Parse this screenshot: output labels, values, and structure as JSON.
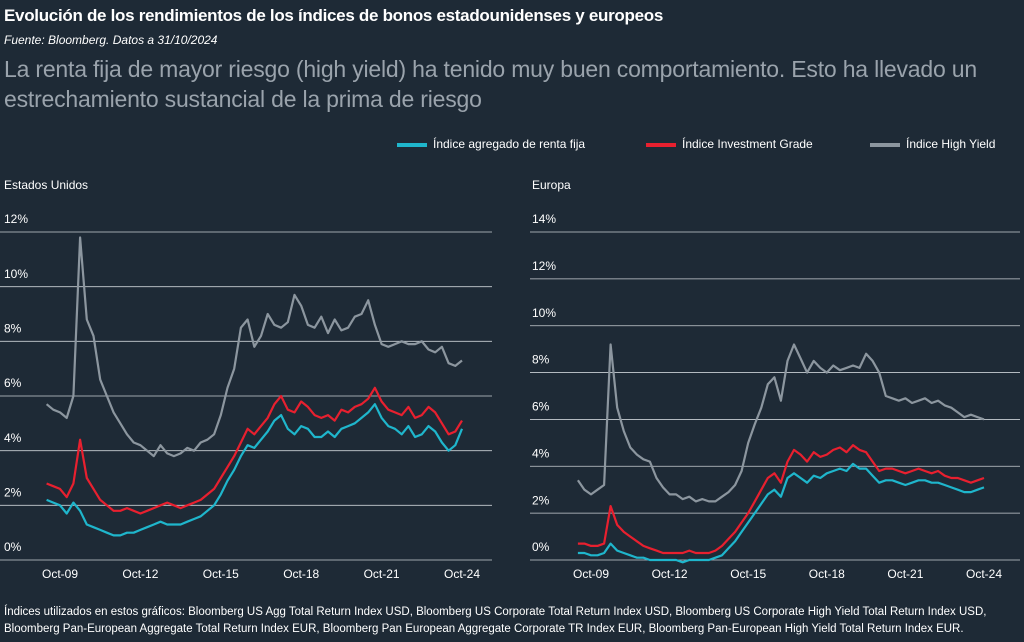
{
  "title": "Evolución de los rendimientos de los índices de bonos estadounidenses y europeos",
  "source": "Fuente: Bloomberg. Datos a 31/10/2024",
  "subtitle": "La renta fija de mayor riesgo (high yield) ha tenido muy buen comportamiento. Esto ha llevado un estrechamiento sustancial de la prima de riesgo",
  "note": "Índices utilizados en estos gráficos: Bloomberg US Agg Total Return Index USD, Bloomberg US Corporate Total Return Index USD, Bloomberg US Corporate High Yield Total Return Index USD, Bloomberg Pan-European Aggregate Total Return Index EUR, Bloomberg Pan European Aggregate Corporate TR Index EUR, Bloomberg Pan-European High Yield Total Return Index EUR.",
  "chart_data": [
    {
      "type": "line",
      "title": "Estados Unidos",
      "categories": [
        null,
        null,
        "Oct-09",
        null,
        null,
        null,
        null,
        null,
        null,
        null,
        null,
        null,
        null,
        null,
        "Oct-12",
        null,
        null,
        null,
        null,
        null,
        null,
        null,
        null,
        null,
        null,
        null,
        "Oct-15",
        null,
        null,
        null,
        null,
        null,
        null,
        null,
        null,
        null,
        null,
        null,
        "Oct-18",
        null,
        null,
        null,
        null,
        null,
        null,
        null,
        null,
        null,
        null,
        null,
        "Oct-21",
        null,
        null,
        null,
        null,
        null,
        null,
        null,
        null,
        null,
        null,
        null,
        "Oct-24"
      ],
      "ylim": [
        0,
        12
      ],
      "yticks": [
        {
          "value": 0,
          "label": "0%"
        },
        {
          "value": 2,
          "label": "2%"
        },
        {
          "value": 4,
          "label": "4%"
        },
        {
          "value": 6,
          "label": "6%"
        },
        {
          "value": 8,
          "label": "8%"
        },
        {
          "value": 10,
          "label": "10%"
        },
        {
          "value": 12,
          "label": "12%"
        }
      ],
      "grid": true,
      "series": [
        {
          "name": "Índice agregado de renta fija",
          "color": "#1fb6cc",
          "values": [
            2.2,
            2.1,
            2.0,
            1.7,
            2.1,
            1.8,
            1.3,
            1.2,
            1.1,
            1.0,
            0.9,
            0.9,
            1.0,
            1.0,
            1.1,
            1.2,
            1.3,
            1.4,
            1.3,
            1.3,
            1.3,
            1.4,
            1.5,
            1.6,
            1.8,
            2.0,
            2.4,
            2.9,
            3.3,
            3.8,
            4.2,
            4.1,
            4.4,
            4.7,
            5.1,
            5.3,
            4.8,
            4.6,
            4.9,
            4.8,
            4.5,
            4.5,
            4.7,
            4.5,
            4.8,
            4.9,
            5.0,
            5.2,
            5.4,
            5.7,
            5.2,
            4.9,
            4.8,
            4.6,
            4.9,
            4.5,
            4.6,
            4.9,
            4.7,
            4.3,
            4.0,
            4.2,
            4.8
          ]
        },
        {
          "name": "Índice Investment Grade",
          "color": "#e8202f",
          "values": [
            2.8,
            2.7,
            2.6,
            2.3,
            2.8,
            4.4,
            3.0,
            2.6,
            2.2,
            2.0,
            1.8,
            1.8,
            1.9,
            1.8,
            1.7,
            1.8,
            1.9,
            2.0,
            2.1,
            2.0,
            1.9,
            2.0,
            2.1,
            2.2,
            2.4,
            2.6,
            3.0,
            3.4,
            3.8,
            4.3,
            4.8,
            4.6,
            4.9,
            5.2,
            5.7,
            6.0,
            5.5,
            5.4,
            5.8,
            5.6,
            5.3,
            5.2,
            5.3,
            5.1,
            5.5,
            5.4,
            5.6,
            5.7,
            5.9,
            6.3,
            5.8,
            5.5,
            5.4,
            5.3,
            5.6,
            5.2,
            5.3,
            5.6,
            5.4,
            5.0,
            4.6,
            4.7,
            5.1
          ]
        },
        {
          "name": "Índice High Yield",
          "color": "#8c969f",
          "values": [
            5.7,
            5.5,
            5.4,
            5.2,
            6.0,
            11.8,
            8.8,
            8.2,
            6.6,
            6.0,
            5.4,
            5.0,
            4.6,
            4.3,
            4.2,
            4.0,
            3.8,
            4.2,
            3.9,
            3.8,
            3.9,
            4.1,
            4.0,
            4.3,
            4.4,
            4.6,
            5.3,
            6.3,
            7.0,
            8.5,
            8.8,
            7.8,
            8.2,
            9.0,
            8.6,
            8.5,
            8.7,
            9.7,
            9.3,
            8.6,
            8.5,
            8.9,
            8.3,
            8.8,
            8.4,
            8.5,
            8.9,
            9.0,
            9.5,
            8.6,
            7.9,
            7.8,
            7.9,
            8.0,
            7.9,
            7.9,
            8.0,
            7.7,
            7.6,
            7.8,
            7.2,
            7.1,
            7.3
          ]
        }
      ]
    },
    {
      "type": "line",
      "title": "Europa",
      "categories": [
        null,
        null,
        "Oct-09",
        null,
        null,
        null,
        null,
        null,
        null,
        null,
        null,
        null,
        null,
        null,
        "Oct-12",
        null,
        null,
        null,
        null,
        null,
        null,
        null,
        null,
        null,
        null,
        null,
        "Oct-15",
        null,
        null,
        null,
        null,
        null,
        null,
        null,
        null,
        null,
        null,
        null,
        "Oct-18",
        null,
        null,
        null,
        null,
        null,
        null,
        null,
        null,
        null,
        null,
        null,
        "Oct-21",
        null,
        null,
        null,
        null,
        null,
        null,
        null,
        null,
        null,
        null,
        null,
        "Oct-24"
      ],
      "ylim": [
        0,
        14
      ],
      "yticks": [
        {
          "value": 0,
          "label": "0%"
        },
        {
          "value": 2,
          "label": "2%"
        },
        {
          "value": 4,
          "label": "4%"
        },
        {
          "value": 6,
          "label": "6%"
        },
        {
          "value": 8,
          "label": "8%"
        },
        {
          "value": 10,
          "label": "10%"
        },
        {
          "value": 12,
          "label": "12%"
        },
        {
          "value": 14,
          "label": "14%"
        }
      ],
      "grid": true,
      "series": [
        {
          "color": "#1fb6cc",
          "values": [
            0.3,
            0.3,
            0.2,
            0.2,
            0.3,
            0.7,
            0.4,
            0.3,
            0.2,
            0.1,
            0.1,
            0.0,
            0.0,
            0.0,
            0.0,
            0.0,
            -0.1,
            0.0,
            0.0,
            0.0,
            0.0,
            0.1,
            0.2,
            0.5,
            0.8,
            1.2,
            1.6,
            2.0,
            2.4,
            2.8,
            3.0,
            2.7,
            3.5,
            3.7,
            3.5,
            3.3,
            3.6,
            3.5,
            3.7,
            3.8,
            3.9,
            3.8,
            4.1,
            3.9,
            3.9,
            3.6,
            3.3,
            3.4,
            3.4,
            3.3,
            3.2,
            3.3,
            3.4,
            3.4,
            3.3,
            3.3,
            3.2,
            3.1,
            3.0,
            2.9,
            2.9,
            3.0,
            3.1
          ]
        },
        {
          "color": "#e8202f",
          "values": [
            0.7,
            0.7,
            0.6,
            0.6,
            0.7,
            2.3,
            1.5,
            1.2,
            1.0,
            0.8,
            0.6,
            0.5,
            0.4,
            0.3,
            0.3,
            0.3,
            0.3,
            0.4,
            0.3,
            0.3,
            0.3,
            0.4,
            0.6,
            0.9,
            1.2,
            1.6,
            2.0,
            2.5,
            3.0,
            3.5,
            3.7,
            3.3,
            4.2,
            4.7,
            4.5,
            4.2,
            4.6,
            4.4,
            4.5,
            4.7,
            4.8,
            4.6,
            4.9,
            4.7,
            4.6,
            4.2,
            3.8,
            3.9,
            3.9,
            3.8,
            3.7,
            3.8,
            3.9,
            3.8,
            3.7,
            3.8,
            3.6,
            3.5,
            3.5,
            3.4,
            3.3,
            3.4,
            3.5
          ]
        },
        {
          "color": "#8c969f",
          "values": [
            3.4,
            3.0,
            2.8,
            3.0,
            3.2,
            9.2,
            6.5,
            5.5,
            4.8,
            4.5,
            4.3,
            4.2,
            3.5,
            3.1,
            2.8,
            2.8,
            2.6,
            2.7,
            2.5,
            2.6,
            2.5,
            2.5,
            2.7,
            2.9,
            3.2,
            3.8,
            5.0,
            5.8,
            6.5,
            7.5,
            7.8,
            6.8,
            8.5,
            9.2,
            8.6,
            8.0,
            8.5,
            8.2,
            8.0,
            8.3,
            8.1,
            8.2,
            8.3,
            8.2,
            8.8,
            8.5,
            8.0,
            7.0,
            6.9,
            6.8,
            6.9,
            6.7,
            6.8,
            6.9,
            6.7,
            6.8,
            6.6,
            6.5,
            6.3,
            6.1,
            6.2,
            6.1,
            6.0
          ]
        }
      ]
    }
  ]
}
